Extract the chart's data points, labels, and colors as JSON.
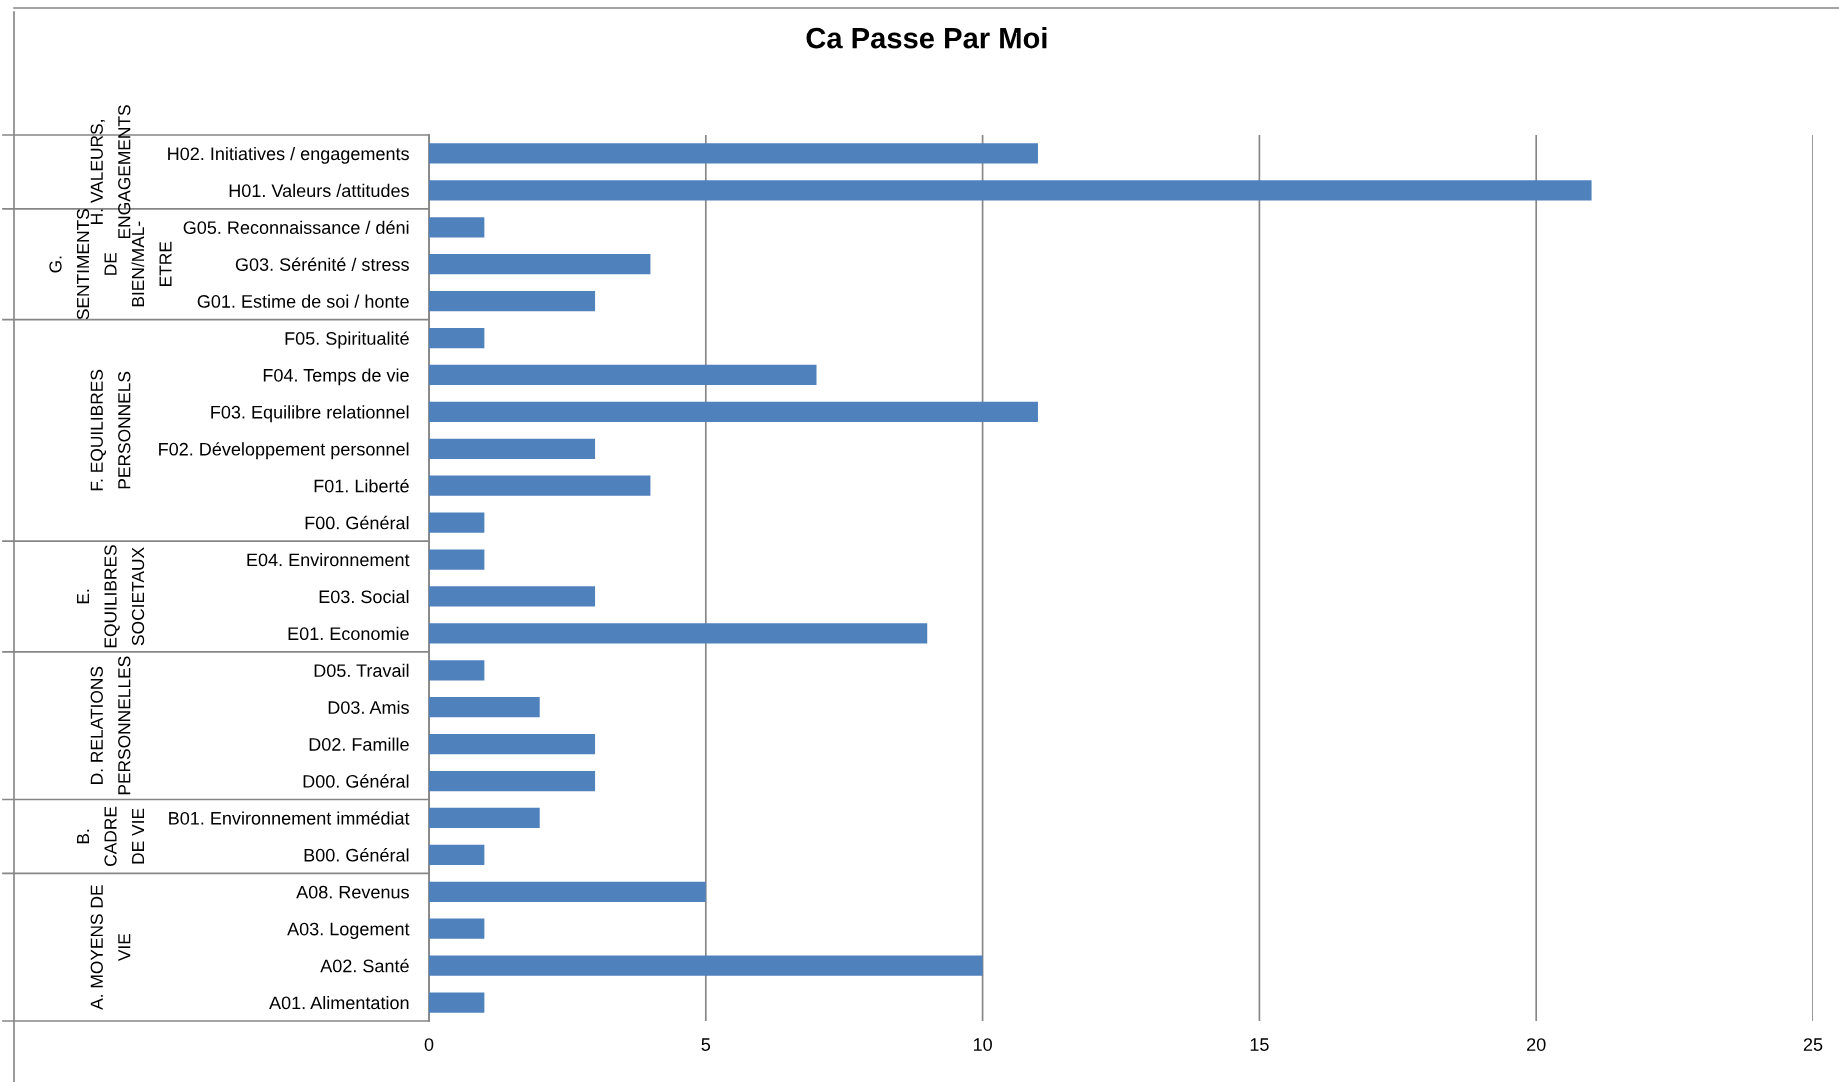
{
  "chart_data": {
    "type": "bar",
    "orientation": "horizontal",
    "title": "Ca Passe Par Moi",
    "categories": [
      "H02. Initiatives / engagements",
      "H01. Valeurs /attitudes",
      "G05. Reconnaissance / déni",
      "G03. Sérénité / stress",
      "G01. Estime de soi / honte",
      "F05. Spiritualité",
      "F04. Temps de vie",
      "F03. Equilibre relationnel",
      "F02. Développement personnel",
      "F01. Liberté",
      "F00. Général",
      "E04. Environnement",
      "E03. Social",
      "E01. Economie",
      "D05. Travail",
      "D03. Amis",
      "D02. Famille",
      "D00. Général",
      "B01. Environnement immédiat",
      "B00. Général",
      "A08. Revenus",
      "A03. Logement",
      "A02. Santé",
      "A01. Alimentation"
    ],
    "values": [
      11,
      21,
      1,
      4,
      3,
      1,
      7,
      11,
      3,
      4,
      1,
      1,
      3,
      9,
      1,
      2,
      3,
      3,
      2,
      1,
      5,
      1,
      10,
      1
    ],
    "color": "#4f81bd",
    "xlim": [
      0,
      25
    ],
    "xticks": [
      0,
      5,
      10,
      15,
      20,
      25
    ],
    "grid": "x",
    "annotations": [
      "H. VALEURS,\nENGAGEMENTS",
      "G.\nSENTIMENTS\nDE\nBIEN/MAL-\nETRE",
      "F. EQUILIBRES\nPERSONNELS",
      "E.\nEQUILIBRES\nSOCIETAUX",
      "D. RELATIONS\nPERSONNELLES",
      "B.\nCADRE\nDE VIE",
      "A. MOYENS DE\nVIE"
    ]
  }
}
